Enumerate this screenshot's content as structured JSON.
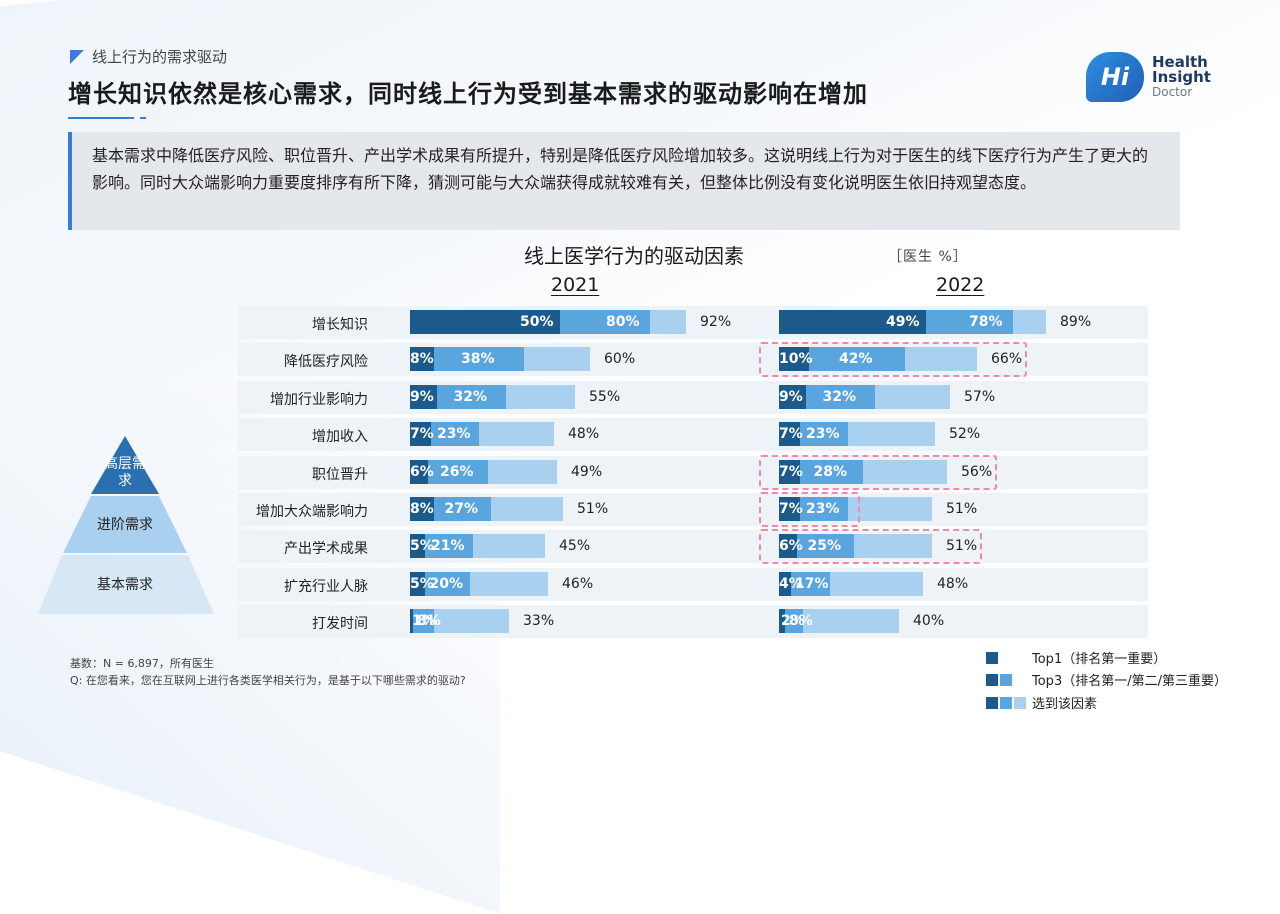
{
  "header": {
    "section": "线上行为的需求驱动",
    "title": "增长知识依然是核心需求，同时线上行为受到基本需求的驱动影响在增加"
  },
  "logo": {
    "mark": "Hi",
    "line1": "Health",
    "line2": "Insight",
    "line3": "Doctor"
  },
  "summary": "基本需求中降低医疗风险、职位晋升、产出学术成果有所提升，特别是降低医疗风险增加较多。这说明线上行为对于医生的线下医疗行为产生了更大的影响。同时大众端影响力重要度排序有所下降，猜测可能与大众端获得成就较难有关，但整体比例没有变化说明医生依旧持观望态度。",
  "colors": {
    "top1": "#1c5a8c",
    "top3": "#5aa5de",
    "selected": "#a9d0ef"
  },
  "chart_data": {
    "type": "bar",
    "title": "线上医学行为的驱动因素",
    "unit": "［医生 %］",
    "categories": [
      "增长知识",
      "降低医疗风险",
      "增加行业影响力",
      "增加收入",
      "职位晋升",
      "增加大众端影响力",
      "产出学术成果",
      "扩充行业人脉",
      "打发时间"
    ],
    "series_names": [
      "Top1（排名第一重要）",
      "Top3（排名第一/第二/第三重要）",
      "选到该因素"
    ],
    "panels": [
      {
        "year": "2021",
        "top1": [
          50,
          8,
          9,
          7,
          6,
          8,
          5,
          5,
          1
        ],
        "top3": [
          80,
          38,
          32,
          23,
          26,
          27,
          21,
          20,
          8
        ],
        "selected": [
          92,
          60,
          55,
          48,
          49,
          51,
          45,
          46,
          33
        ]
      },
      {
        "year": "2022",
        "top1": [
          49,
          10,
          9,
          7,
          7,
          7,
          6,
          4,
          2
        ],
        "top3": [
          78,
          42,
          32,
          23,
          28,
          23,
          25,
          17,
          8
        ],
        "selected": [
          89,
          66,
          57,
          52,
          56,
          51,
          51,
          48,
          40
        ]
      }
    ]
  },
  "pyramid": {
    "top": "高层需求",
    "middle": "进阶需求",
    "bottom": "基本需求"
  },
  "footnotes": {
    "base": "基数：N = 6,897，所有医生",
    "question": "Q: 在您看来，您在互联网上进行各类医学相关行为，是基于以下哪些需求的驱动?"
  }
}
